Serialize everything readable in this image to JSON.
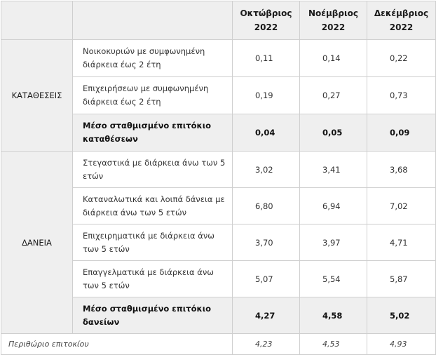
{
  "header": {
    "columns": [
      "Οκτώβριος\n2022",
      "Νοέμβριος\n2022",
      "Δεκέμβριος\n2022"
    ]
  },
  "deposits": {
    "group_label": "ΚΑΤΑΘΕΣΕΙΣ",
    "rows": [
      {
        "label": "Νοικοκυριών με συμφωνημένη διάρκεια έως 2 έτη",
        "values": [
          "0,11",
          "0,14",
          "0,22"
        ]
      },
      {
        "label": "Επιχειρήσεων με συμφωνημένη διάρκεια έως 2 έτη",
        "values": [
          "0,19",
          "0,27",
          "0,73"
        ]
      }
    ],
    "average": {
      "label": "Μέσο σταθμισμένο επιτόκιο καταθέσεων",
      "values": [
        "0,04",
        "0,05",
        "0,09"
      ]
    }
  },
  "loans": {
    "group_label": "ΔΑΝΕΙΑ",
    "rows": [
      {
        "label": "Στεγαστικά με διάρκεια άνω των 5 ετών",
        "values": [
          "3,02",
          "3,41",
          "3,68"
        ]
      },
      {
        "label": "Καταναλωτικά και λοιπά δάνεια με διάρκεια άνω των 5 ετών",
        "values": [
          "6,80",
          "6,94",
          "7,02"
        ]
      },
      {
        "label": "Επιχειρηματικά με διάρκεια άνω των 5 ετών",
        "values": [
          "3,70",
          "3,97",
          "4,71"
        ]
      },
      {
        "label": "Επαγγελματικά με διάρκεια άνω των 5 ετών",
        "values": [
          "5,07",
          "5,54",
          "5,87"
        ]
      }
    ],
    "average": {
      "label": "Μέσο σταθμισμένο επιτόκιο δανείων",
      "values": [
        "4,27",
        "4,58",
        "5,02"
      ]
    }
  },
  "margin": {
    "label": "Περιθώριο επιτοκίου",
    "values": [
      "4,23",
      "4,53",
      "4,93"
    ]
  }
}
